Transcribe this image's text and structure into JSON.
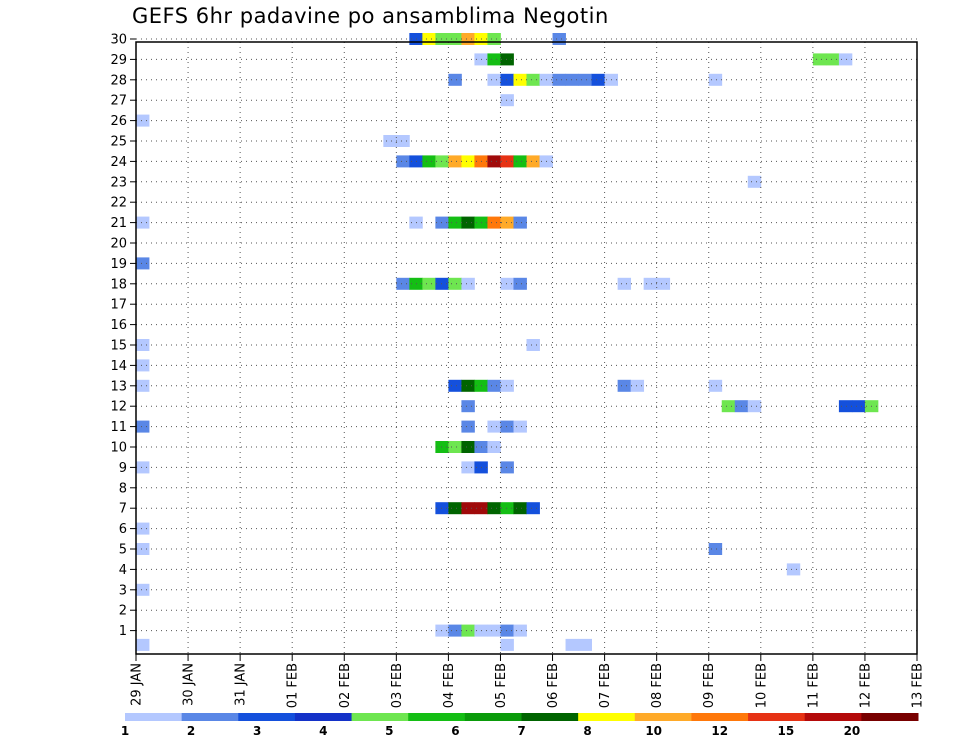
{
  "chart_data": {
    "type": "heatmap",
    "title": "GEFS 6hr padavine po ansamblima Negotin",
    "xlabel": "",
    "ylabel": "",
    "x_tick_labels": [
      "29 JAN",
      "30 JAN",
      "31 JAN",
      "01 FEB",
      "02 FEB",
      "03 FEB",
      "04 FEB",
      "05 FEB",
      "06 FEB",
      "07 FEB",
      "08 FEB",
      "09 FEB",
      "10 FEB",
      "11 FEB",
      "12 FEB",
      "13 FEB"
    ],
    "y_tick_labels": [
      "1",
      "2",
      "3",
      "4",
      "5",
      "6",
      "7",
      "8",
      "9",
      "10",
      "11",
      "12",
      "13",
      "14",
      "15",
      "16",
      "17",
      "18",
      "19",
      "20",
      "21",
      "22",
      "23",
      "24",
      "25",
      "26",
      "27",
      "28",
      "29",
      "30"
    ],
    "x_unit": "6-hour step from 29 JAN 00Z",
    "xlim": [
      0,
      60
    ],
    "ylim": [
      0,
      30
    ],
    "grid": "dotted",
    "legend": {
      "position": "bottom",
      "labels": [
        "1",
        "2",
        "3",
        "4",
        "5",
        "6",
        "7",
        "8",
        "10",
        "12",
        "15",
        "20"
      ],
      "colors": [
        "#b4c8ff",
        "#5a87e6",
        "#1450dc",
        "#1432c8",
        "#6ee650",
        "#14be14",
        "#0a9b0a",
        "#006400",
        "#ffff00",
        "#ffaa28",
        "#ff780a",
        "#e63214",
        "#b40a0a",
        "#780000"
      ]
    },
    "level_colors": {
      "1": "#b4c8ff",
      "2": "#5a87e6",
      "3": "#1450dc",
      "4": "#6ee650",
      "5": "#14be14",
      "6": "#006400",
      "7": "#ffff00",
      "8": "#ffaa28",
      "9": "#ff780a",
      "10": "#e63214",
      "11": "#a00a0a"
    },
    "cells": [
      {
        "y": 0.3,
        "x": 0,
        "v": 1
      },
      {
        "y": 0.3,
        "x": 28,
        "v": 1
      },
      {
        "y": 0.3,
        "x": 33,
        "v": 1
      },
      {
        "y": 0.3,
        "x": 34,
        "v": 1
      },
      {
        "y": 1,
        "x": 23,
        "v": 1
      },
      {
        "y": 1,
        "x": 24,
        "v": 2
      },
      {
        "y": 1,
        "x": 25,
        "v": 4
      },
      {
        "y": 1,
        "x": 26,
        "v": 1
      },
      {
        "y": 1,
        "x": 27,
        "v": 1
      },
      {
        "y": 1,
        "x": 28,
        "v": 2
      },
      {
        "y": 1,
        "x": 29,
        "v": 1
      },
      {
        "y": 3,
        "x": 0,
        "v": 1
      },
      {
        "y": 4,
        "x": 50,
        "v": 1
      },
      {
        "y": 5,
        "x": 0,
        "v": 1
      },
      {
        "y": 5,
        "x": 44,
        "v": 2
      },
      {
        "y": 6,
        "x": 0,
        "v": 1
      },
      {
        "y": 7,
        "x": 23,
        "v": 3
      },
      {
        "y": 7,
        "x": 24,
        "v": 6
      },
      {
        "y": 7,
        "x": 25,
        "v": 11
      },
      {
        "y": 7,
        "x": 26,
        "v": 11
      },
      {
        "y": 7,
        "x": 27,
        "v": 6
      },
      {
        "y": 7,
        "x": 28,
        "v": 5
      },
      {
        "y": 7,
        "x": 29,
        "v": 6
      },
      {
        "y": 7,
        "x": 30,
        "v": 3
      },
      {
        "y": 9,
        "x": 0,
        "v": 1
      },
      {
        "y": 9,
        "x": 25,
        "v": 1
      },
      {
        "y": 9,
        "x": 26,
        "v": 3
      },
      {
        "y": 9,
        "x": 28,
        "v": 2
      },
      {
        "y": 10,
        "x": 23,
        "v": 5
      },
      {
        "y": 10,
        "x": 24,
        "v": 4
      },
      {
        "y": 10,
        "x": 25,
        "v": 6
      },
      {
        "y": 10,
        "x": 26,
        "v": 2
      },
      {
        "y": 10,
        "x": 27,
        "v": 1
      },
      {
        "y": 11,
        "x": 0,
        "v": 2
      },
      {
        "y": 11,
        "x": 25,
        "v": 2
      },
      {
        "y": 11,
        "x": 27,
        "v": 1
      },
      {
        "y": 11,
        "x": 28,
        "v": 2
      },
      {
        "y": 11,
        "x": 29,
        "v": 1
      },
      {
        "y": 12,
        "x": 25,
        "v": 2
      },
      {
        "y": 12,
        "x": 45,
        "v": 4
      },
      {
        "y": 12,
        "x": 46,
        "v": 2
      },
      {
        "y": 12,
        "x": 47,
        "v": 1
      },
      {
        "y": 12,
        "x": 54,
        "v": 3
      },
      {
        "y": 12,
        "x": 55,
        "v": 3
      },
      {
        "y": 12,
        "x": 56,
        "v": 4
      },
      {
        "y": 13,
        "x": 0,
        "v": 1
      },
      {
        "y": 13,
        "x": 24,
        "v": 3
      },
      {
        "y": 13,
        "x": 25,
        "v": 6
      },
      {
        "y": 13,
        "x": 26,
        "v": 5
      },
      {
        "y": 13,
        "x": 27,
        "v": 2
      },
      {
        "y": 13,
        "x": 28,
        "v": 1
      },
      {
        "y": 13,
        "x": 37,
        "v": 2
      },
      {
        "y": 13,
        "x": 38,
        "v": 1
      },
      {
        "y": 13,
        "x": 44,
        "v": 1
      },
      {
        "y": 14,
        "x": 0,
        "v": 1
      },
      {
        "y": 15,
        "x": 0,
        "v": 1
      },
      {
        "y": 15,
        "x": 30,
        "v": 1
      },
      {
        "y": 18,
        "x": 20,
        "v": 2
      },
      {
        "y": 18,
        "x": 21,
        "v": 5
      },
      {
        "y": 18,
        "x": 22,
        "v": 4
      },
      {
        "y": 18,
        "x": 23,
        "v": 3
      },
      {
        "y": 18,
        "x": 24,
        "v": 4
      },
      {
        "y": 18,
        "x": 25,
        "v": 1
      },
      {
        "y": 18,
        "x": 28,
        "v": 1
      },
      {
        "y": 18,
        "x": 29,
        "v": 2
      },
      {
        "y": 18,
        "x": 37,
        "v": 1
      },
      {
        "y": 18,
        "x": 39,
        "v": 1
      },
      {
        "y": 18,
        "x": 40,
        "v": 1
      },
      {
        "y": 19,
        "x": 0,
        "v": 2
      },
      {
        "y": 21,
        "x": 0,
        "v": 1
      },
      {
        "y": 21,
        "x": 21,
        "v": 1
      },
      {
        "y": 21,
        "x": 23,
        "v": 2
      },
      {
        "y": 21,
        "x": 24,
        "v": 5
      },
      {
        "y": 21,
        "x": 25,
        "v": 6
      },
      {
        "y": 21,
        "x": 26,
        "v": 5
      },
      {
        "y": 21,
        "x": 27,
        "v": 9
      },
      {
        "y": 21,
        "x": 28,
        "v": 8
      },
      {
        "y": 21,
        "x": 29,
        "v": 2
      },
      {
        "y": 23,
        "x": 47,
        "v": 1
      },
      {
        "y": 24,
        "x": 20,
        "v": 2
      },
      {
        "y": 24,
        "x": 21,
        "v": 3
      },
      {
        "y": 24,
        "x": 22,
        "v": 5
      },
      {
        "y": 24,
        "x": 23,
        "v": 4
      },
      {
        "y": 24,
        "x": 24,
        "v": 8
      },
      {
        "y": 24,
        "x": 25,
        "v": 7
      },
      {
        "y": 24,
        "x": 26,
        "v": 9
      },
      {
        "y": 24,
        "x": 27,
        "v": 11
      },
      {
        "y": 24,
        "x": 28,
        "v": 10
      },
      {
        "y": 24,
        "x": 29,
        "v": 5
      },
      {
        "y": 24,
        "x": 30,
        "v": 8
      },
      {
        "y": 24,
        "x": 31,
        "v": 1
      },
      {
        "y": 25,
        "x": 19,
        "v": 1
      },
      {
        "y": 25,
        "x": 20,
        "v": 1
      },
      {
        "y": 26,
        "x": 0,
        "v": 1
      },
      {
        "y": 27,
        "x": 28,
        "v": 1
      },
      {
        "y": 28,
        "x": 24,
        "v": 2
      },
      {
        "y": 28,
        "x": 27,
        "v": 1
      },
      {
        "y": 28,
        "x": 28,
        "v": 3
      },
      {
        "y": 28,
        "x": 29,
        "v": 7
      },
      {
        "y": 28,
        "x": 30,
        "v": 4
      },
      {
        "y": 28,
        "x": 31,
        "v": 1
      },
      {
        "y": 28,
        "x": 32,
        "v": 2
      },
      {
        "y": 28,
        "x": 33,
        "v": 2
      },
      {
        "y": 28,
        "x": 34,
        "v": 2
      },
      {
        "y": 28,
        "x": 35,
        "v": 3
      },
      {
        "y": 28,
        "x": 36,
        "v": 1
      },
      {
        "y": 28,
        "x": 44,
        "v": 1
      },
      {
        "y": 29,
        "x": 26,
        "v": 1
      },
      {
        "y": 29,
        "x": 27,
        "v": 5
      },
      {
        "y": 29,
        "x": 28,
        "v": 6
      },
      {
        "y": 29,
        "x": 52,
        "v": 4
      },
      {
        "y": 29,
        "x": 53,
        "v": 4
      },
      {
        "y": 29,
        "x": 54,
        "v": 1
      },
      {
        "y": 30,
        "x": 21,
        "v": 3
      },
      {
        "y": 30,
        "x": 22,
        "v": 7
      },
      {
        "y": 30,
        "x": 23,
        "v": 4
      },
      {
        "y": 30,
        "x": 24,
        "v": 4
      },
      {
        "y": 30,
        "x": 25,
        "v": 8
      },
      {
        "y": 30,
        "x": 26,
        "v": 7
      },
      {
        "y": 30,
        "x": 27,
        "v": 4
      },
      {
        "y": 30,
        "x": 32,
        "v": 2
      }
    ]
  }
}
